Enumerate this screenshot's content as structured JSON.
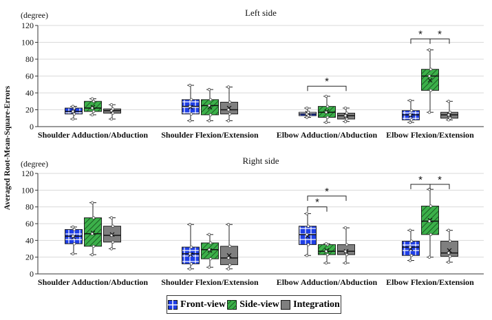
{
  "chart_data": {
    "type": "box",
    "y_axis_label": "Averaged Root-Mean-Square-Errors",
    "unit_label": "(degree)",
    "ylim": [
      0,
      120
    ],
    "yticks": [
      0,
      20,
      40,
      60,
      80,
      100,
      120
    ],
    "categories": [
      "Shoulder Adduction/Abduction",
      "Shoulder Flexion/Extension",
      "Elbow Adduction/Abduction",
      "Elbow Flexion/Extension"
    ],
    "series_names": [
      "Front-view",
      "Side-view",
      "Integration"
    ],
    "colors": {
      "front": "#1f3fe6",
      "side": "#3cb04a",
      "integration": "#7f7f7f"
    },
    "significance_mark": "*",
    "panels": [
      {
        "title": "Left side",
        "groups": [
          {
            "boxes": [
              {
                "q1": 15,
                "median": 18,
                "q3": 22,
                "min": 9,
                "max": 24,
                "mean": 18
              },
              {
                "q1": 18,
                "median": 22,
                "q3": 30,
                "min": 14,
                "max": 33,
                "mean": 23
              },
              {
                "q1": 16,
                "median": 19,
                "q3": 21,
                "min": 9,
                "max": 26,
                "mean": 18
              }
            ]
          },
          {
            "boxes": [
              {
                "q1": 15,
                "median": 24,
                "q3": 32,
                "min": 7,
                "max": 49,
                "mean": 23
              },
              {
                "q1": 14,
                "median": 25,
                "q3": 32,
                "min": 7,
                "max": 44,
                "mean": 23
              },
              {
                "q1": 15,
                "median": 20,
                "q3": 29,
                "min": 7,
                "max": 47,
                "mean": 22
              }
            ]
          },
          {
            "boxes": [
              {
                "q1": 13,
                "median": 15,
                "q3": 17,
                "min": 11,
                "max": 22,
                "mean": 16
              },
              {
                "q1": 11,
                "median": 17,
                "q3": 24,
                "min": 5,
                "max": 36,
                "mean": 18
              },
              {
                "q1": 9,
                "median": 13,
                "q3": 16,
                "min": 6,
                "max": 22,
                "mean": 13
              }
            ],
            "brackets": [
              {
                "from": 0,
                "to": 2,
                "level": 48
              }
            ]
          },
          {
            "boxes": [
              {
                "q1": 8,
                "median": 14,
                "q3": 19,
                "min": 5,
                "max": 31,
                "mean": 13
              },
              {
                "q1": 43,
                "median": 60,
                "q3": 68,
                "min": 17,
                "max": 91,
                "mean": 55
              },
              {
                "q1": 10,
                "median": 14,
                "q3": 17,
                "min": 8,
                "max": 30,
                "mean": 14
              }
            ],
            "brackets": [
              {
                "from": 0,
                "to": 1,
                "level": 104
              },
              {
                "from": 1,
                "to": 2,
                "level": 104
              }
            ]
          }
        ]
      },
      {
        "title": "Right side",
        "groups": [
          {
            "boxes": [
              {
                "q1": 36,
                "median": 45,
                "q3": 53,
                "min": 24,
                "max": 56,
                "mean": 44
              },
              {
                "q1": 33,
                "median": 48,
                "q3": 67,
                "min": 23,
                "max": 85,
                "mean": 49
              },
              {
                "q1": 38,
                "median": 46,
                "q3": 57,
                "min": 30,
                "max": 67,
                "mean": 47
              }
            ]
          },
          {
            "boxes": [
              {
                "q1": 12,
                "median": 24,
                "q3": 32,
                "min": 6,
                "max": 59,
                "mean": 23
              },
              {
                "q1": 18,
                "median": 29,
                "q3": 37,
                "min": 8,
                "max": 47,
                "mean": 28
              },
              {
                "q1": 11,
                "median": 19,
                "q3": 33,
                "min": 6,
                "max": 59,
                "mean": 22
              }
            ]
          },
          {
            "boxes": [
              {
                "q1": 35,
                "median": 47,
                "q3": 57,
                "min": 22,
                "max": 72,
                "mean": 45
              },
              {
                "q1": 23,
                "median": 27,
                "q3": 35,
                "min": 13,
                "max": 36,
                "mean": 28
              },
              {
                "q1": 23,
                "median": 27,
                "q3": 35,
                "min": 13,
                "max": 55,
                "mean": 27
              }
            ],
            "brackets": [
              {
                "from": 0,
                "to": 1,
                "level": 80
              },
              {
                "from": 0,
                "to": 2,
                "level": 93
              }
            ]
          },
          {
            "boxes": [
              {
                "q1": 22,
                "median": 32,
                "q3": 39,
                "min": 16,
                "max": 52,
                "mean": 30
              },
              {
                "q1": 47,
                "median": 63,
                "q3": 81,
                "min": 20,
                "max": 101,
                "mean": 64
              },
              {
                "q1": 21,
                "median": 25,
                "q3": 39,
                "min": 14,
                "max": 52,
                "mean": 28
              }
            ],
            "brackets": [
              {
                "from": 0,
                "to": 1,
                "level": 107
              },
              {
                "from": 1,
                "to": 2,
                "level": 107
              }
            ]
          }
        ]
      }
    ]
  },
  "legend": {
    "front": "Front-view",
    "side": "Side-view",
    "integration": "Integration"
  }
}
